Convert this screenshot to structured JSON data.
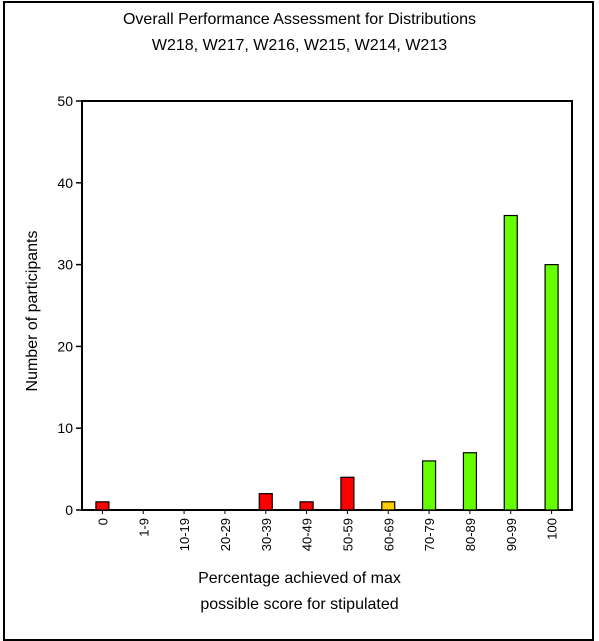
{
  "chart_data": {
    "type": "bar",
    "title": "Overall Performance Assessment for Distributions",
    "subtitle": "W218, W217, W216, W215, W214, W213",
    "xlabel_line1": "Percentage achieved of max",
    "xlabel_line2": "possible score for stipulated",
    "ylabel": "Number of participants",
    "categories": [
      "0",
      "1-9",
      "10-19",
      "20-29",
      "30-39",
      "40-49",
      "50-59",
      "60-69",
      "70-79",
      "80-89",
      "90-99",
      "100"
    ],
    "values": [
      1,
      0,
      0,
      0,
      2,
      1,
      4,
      1,
      6,
      7,
      36,
      30
    ],
    "bar_colors": [
      "#ff0000",
      "#ff0000",
      "#ff0000",
      "#ff0000",
      "#ff0000",
      "#ff0000",
      "#ff0000",
      "#ffcc00",
      "#66ff00",
      "#66ff00",
      "#66ff00",
      "#66ff00"
    ],
    "ylim": [
      0,
      50
    ],
    "yticks": [
      0,
      10,
      20,
      30,
      40,
      50
    ],
    "grid": false,
    "legend": "none"
  }
}
